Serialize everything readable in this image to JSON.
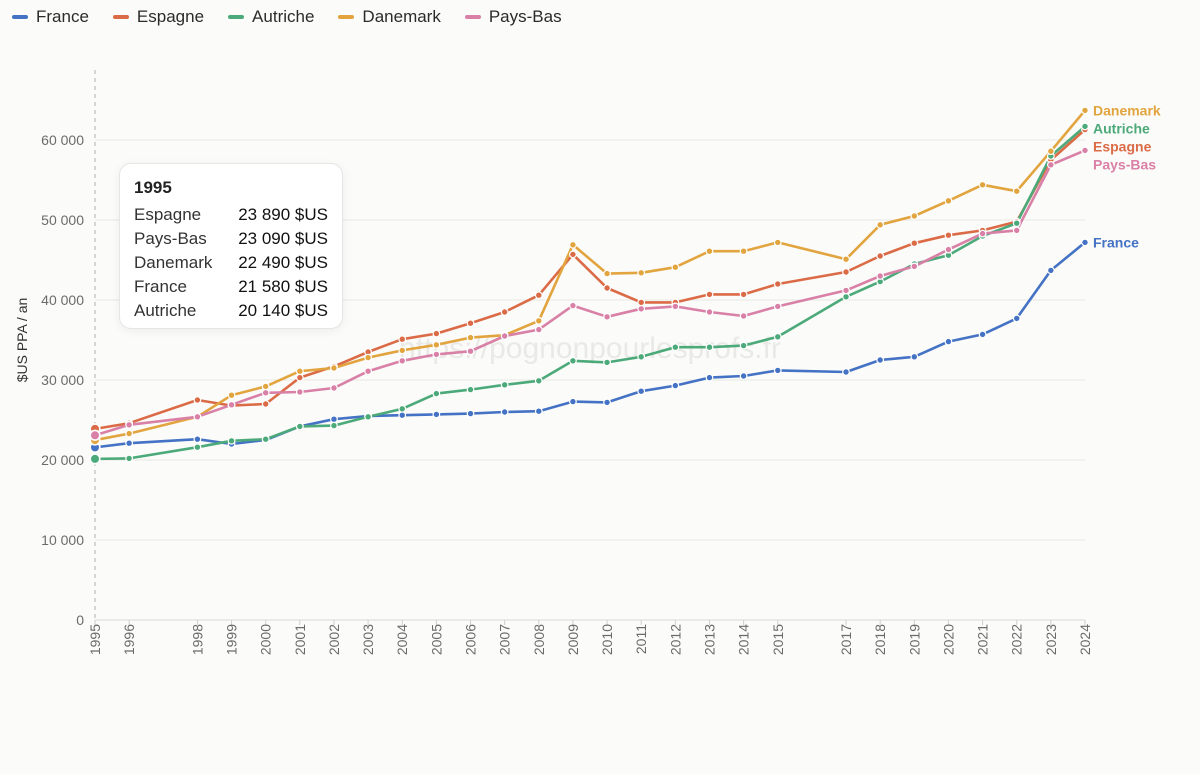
{
  "legend": [
    {
      "name": "France",
      "color": "#4472c4"
    },
    {
      "name": "Espagne",
      "color": "#db6b46"
    },
    {
      "name": "Autriche",
      "color": "#4caa7a"
    },
    {
      "name": "Danemark",
      "color": "#e2a43e"
    },
    {
      "name": "Pays-Bas",
      "color": "#d980a6"
    }
  ],
  "watermark": "https://pognonpourlesprofs.fr",
  "tooltip": {
    "title": "1995",
    "rows": [
      {
        "name": "Espagne",
        "value": "23 890 $US"
      },
      {
        "name": "Pays-Bas",
        "value": "23 090 $US"
      },
      {
        "name": "Danemark",
        "value": "22 490 $US"
      },
      {
        "name": "France",
        "value": "21 580 $US"
      },
      {
        "name": "Autriche",
        "value": "20 140 $US"
      }
    ]
  },
  "chart_data": {
    "type": "line",
    "ylabel": "$US PPA / an",
    "xlabel": "",
    "ylim": [
      0,
      65000
    ],
    "yticks": [
      0,
      10000,
      20000,
      30000,
      40000,
      50000,
      60000
    ],
    "ytick_labels": [
      "0",
      "10 000",
      "20 000",
      "30 000",
      "40 000",
      "50 000",
      "60 000"
    ],
    "grid": true,
    "legend_position": "top-left",
    "highlighted_x": "1995",
    "x": [
      "1995",
      "1996",
      "1998",
      "1999",
      "2000",
      "2001",
      "2002",
      "2003",
      "2004",
      "2005",
      "2006",
      "2007",
      "2008",
      "2009",
      "2010",
      "2011",
      "2012",
      "2013",
      "2014",
      "2015",
      "2017",
      "2018",
      "2019",
      "2020",
      "2021",
      "2022",
      "2023",
      "2024"
    ],
    "series": [
      {
        "name": "France",
        "color": "#4472c4",
        "values": [
          21580,
          22100,
          22600,
          22000,
          22500,
          24200,
          25100,
          25500,
          25600,
          25700,
          25800,
          26000,
          26100,
          27300,
          27200,
          28600,
          29300,
          30300,
          30500,
          31200,
          31000,
          32500,
          32900,
          34800,
          35700,
          37700,
          43700,
          47200
        ]
      },
      {
        "name": "Espagne",
        "color": "#db6b46",
        "values": [
          23890,
          24600,
          27500,
          26800,
          27000,
          30300,
          31700,
          33500,
          35100,
          35800,
          37100,
          38500,
          40600,
          45700,
          41500,
          39700,
          39700,
          40700,
          40700,
          42000,
          43500,
          45500,
          47100,
          48100,
          48700,
          49800,
          57500,
          61300
        ]
      },
      {
        "name": "Autriche",
        "color": "#4caa7a",
        "values": [
          20140,
          20200,
          21600,
          22400,
          22600,
          24200,
          24300,
          25400,
          26400,
          28300,
          28800,
          29400,
          29900,
          32400,
          32200,
          32900,
          34100,
          34100,
          34300,
          35400,
          40400,
          42300,
          44500,
          45600,
          48000,
          49600,
          58000,
          61700
        ]
      },
      {
        "name": "Danemark",
        "color": "#e2a43e",
        "values": [
          22490,
          23300,
          25400,
          28100,
          29200,
          31100,
          31500,
          32800,
          33700,
          34400,
          35300,
          35600,
          37400,
          46900,
          43300,
          43400,
          44100,
          46100,
          46100,
          47200,
          45100,
          49400,
          50500,
          52400,
          54400,
          53600,
          58600,
          63700
        ]
      },
      {
        "name": "Pays-Bas",
        "color": "#d980a6",
        "values": [
          23090,
          24400,
          25400,
          26900,
          28400,
          28500,
          29000,
          31100,
          32400,
          33200,
          33600,
          35500,
          36300,
          39300,
          37900,
          38900,
          39200,
          38500,
          38000,
          39200,
          41200,
          43000,
          44200,
          46300,
          48300,
          48700,
          56900,
          58700
        ]
      }
    ],
    "end_labels": [
      {
        "name": "Danemark",
        "color": "#e2a43e"
      },
      {
        "name": "Autriche",
        "color": "#4caa7a"
      },
      {
        "name": "Espagne",
        "color": "#db6b46"
      },
      {
        "name": "Pays-Bas",
        "color": "#d980a6"
      },
      {
        "name": "France",
        "color": "#4472c4"
      }
    ]
  }
}
